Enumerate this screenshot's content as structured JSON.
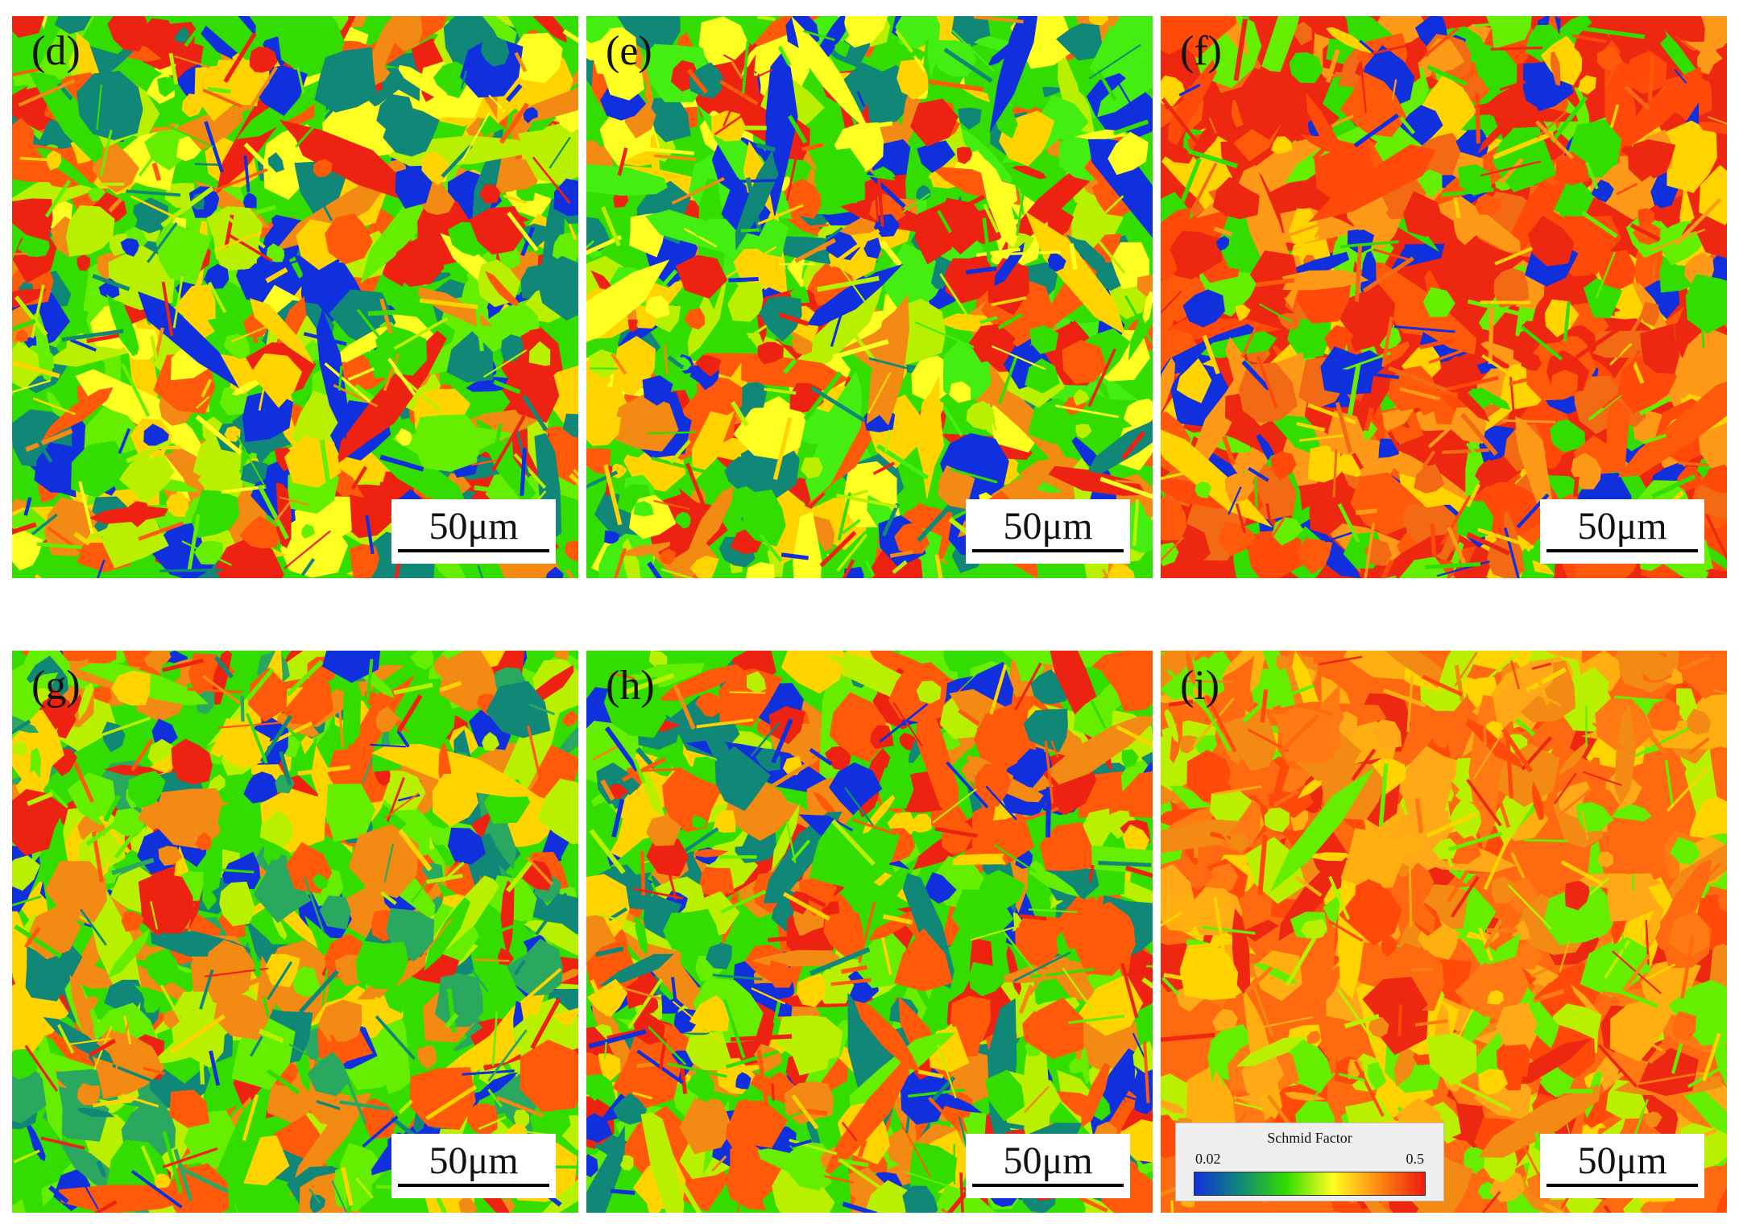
{
  "panels": [
    {
      "label": "(d)",
      "scale": "50μm",
      "palette": [
        "#33dd00",
        "#66ee00",
        "#ff5a0a",
        "#f28a14",
        "#ffd400",
        "#ffff22",
        "#b9f000",
        "#118877",
        "#1030dd",
        "#ee2210"
      ]
    },
    {
      "label": "(e)",
      "scale": "50μm",
      "palette": [
        "#33dd00",
        "#44ee11",
        "#ff5a0a",
        "#f28a14",
        "#ffd400",
        "#118877",
        "#1030dd",
        "#ee2210",
        "#b9f000",
        "#ffff22"
      ]
    },
    {
      "label": "(f)",
      "scale": "50μm",
      "palette": [
        "#ee2810",
        "#ff4a0a",
        "#f26a14",
        "#ff9a18",
        "#ffd400",
        "#66ee00",
        "#33dd00",
        "#ee2810",
        "#ff5a0a",
        "#1030dd"
      ]
    },
    {
      "label": "(g)",
      "scale": "50μm",
      "palette": [
        "#33dd00",
        "#66ee00",
        "#ff5a0a",
        "#f28a14",
        "#1030dd",
        "#118877",
        "#ee2210",
        "#ffd400",
        "#2aa860",
        "#b9f000"
      ]
    },
    {
      "label": "(h)",
      "scale": "50μm",
      "palette": [
        "#33dd00",
        "#66ee00",
        "#ff5a0a",
        "#ee2210",
        "#f28a14",
        "#ffd400",
        "#118877",
        "#b9f000",
        "#ff5a0a",
        "#1030dd"
      ]
    },
    {
      "label": "(i)",
      "scale": "50μm",
      "palette": [
        "#ff6a10",
        "#f28a14",
        "#ffa818",
        "#ff4a0a",
        "#ffd400",
        "#ee2810",
        "#b9f000",
        "#ff7a12",
        "#66ee00",
        "#ffb010"
      ]
    }
  ],
  "legend": {
    "title": "Schmid Factor",
    "min": "0.02",
    "max": "0.5",
    "colors": [
      "#1030dd",
      "#118877",
      "#33dd00",
      "#ffff22",
      "#ff8a10",
      "#ee1a10"
    ]
  }
}
